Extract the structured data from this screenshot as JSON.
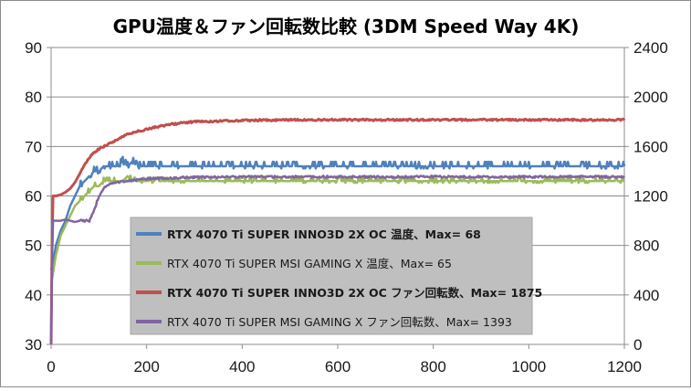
{
  "chart_data": {
    "type": "line",
    "title": "GPU温度＆ファン回転数比較 (3DM Speed Way 4K)",
    "x_ticks": [
      "0",
      "200",
      "400",
      "600",
      "800",
      "1000",
      "1200"
    ],
    "y_left_ticks": [
      "30",
      "40",
      "50",
      "60",
      "70",
      "80",
      "90"
    ],
    "y_right_ticks": [
      "0",
      "400",
      "800",
      "1200",
      "1600",
      "2000",
      "2400"
    ],
    "xlim": [
      0,
      1200
    ],
    "ylim_left": [
      30,
      90
    ],
    "ylim_right": [
      0,
      2400
    ],
    "grid": "horizontal",
    "legend_position": "center-left",
    "series": [
      {
        "name": "RTX 4070 Ti SUPER INNO3D 2X OC 温度、Max= 68",
        "axis": "left",
        "color": "#4f81bd",
        "bold": true,
        "x": [
          0,
          5,
          10,
          20,
          30,
          40,
          50,
          60,
          70,
          80,
          90,
          100,
          110,
          120,
          130,
          140,
          150,
          160,
          170,
          180,
          190,
          200,
          250,
          300,
          400,
          500,
          600,
          700,
          800,
          900,
          1000,
          1100,
          1200
        ],
        "values": [
          45,
          47,
          50,
          53,
          55,
          58,
          60,
          62,
          63,
          64,
          65,
          65,
          66,
          66,
          66,
          66,
          67,
          66,
          67,
          66,
          66,
          66,
          66,
          66,
          66,
          66,
          66,
          66,
          66,
          66,
          66,
          66,
          66
        ]
      },
      {
        "name": "RTX 4070 Ti SUPER MSI GAMING X 温度、Max= 65",
        "axis": "left",
        "color": "#9bbb59",
        "bold": false,
        "x": [
          0,
          5,
          10,
          20,
          30,
          40,
          50,
          60,
          70,
          80,
          90,
          100,
          110,
          120,
          130,
          140,
          150,
          160,
          170,
          180,
          190,
          200,
          250,
          300,
          400,
          500,
          600,
          700,
          800,
          900,
          1000,
          1100,
          1200
        ],
        "values": [
          42,
          45,
          48,
          52,
          54,
          56,
          58,
          59,
          60,
          61,
          62,
          62,
          63,
          63,
          63,
          63,
          63,
          64,
          63,
          63,
          63,
          63,
          63,
          63,
          63,
          63,
          63,
          63,
          63,
          63,
          63,
          63,
          63
        ]
      },
      {
        "name": "RTX 4070 Ti SUPER INNO3D 2X OC ファン回転数、Max= 1875",
        "axis": "right",
        "color": "#c0504d",
        "bold": true,
        "x": [
          0,
          3,
          6,
          10,
          20,
          30,
          40,
          50,
          60,
          70,
          80,
          90,
          100,
          120,
          140,
          160,
          180,
          200,
          250,
          300,
          400,
          500,
          600,
          700,
          800,
          900,
          1000,
          1100,
          1200
        ],
        "values": [
          0,
          1200,
          1200,
          1200,
          1210,
          1230,
          1260,
          1310,
          1380,
          1450,
          1510,
          1550,
          1580,
          1620,
          1660,
          1700,
          1720,
          1740,
          1780,
          1800,
          1810,
          1815,
          1815,
          1815,
          1815,
          1815,
          1815,
          1815,
          1815
        ]
      },
      {
        "name": "RTX 4070 Ti SUPER MSI GAMING X ファン回転数、Max= 1393",
        "axis": "right",
        "color": "#8064a2",
        "bold": false,
        "x": [
          0,
          3,
          8,
          10,
          20,
          30,
          40,
          50,
          60,
          70,
          80,
          90,
          100,
          110,
          120,
          140,
          160,
          180,
          200,
          250,
          300,
          400,
          500,
          600,
          700,
          800,
          900,
          1000,
          1100,
          1200
        ],
        "values": [
          0,
          1000,
          1000,
          1000,
          1000,
          1010,
          1000,
          990,
          1000,
          1000,
          1000,
          1080,
          1200,
          1260,
          1290,
          1310,
          1320,
          1330,
          1340,
          1345,
          1350,
          1355,
          1355,
          1355,
          1355,
          1355,
          1355,
          1355,
          1355,
          1355
        ]
      }
    ]
  }
}
